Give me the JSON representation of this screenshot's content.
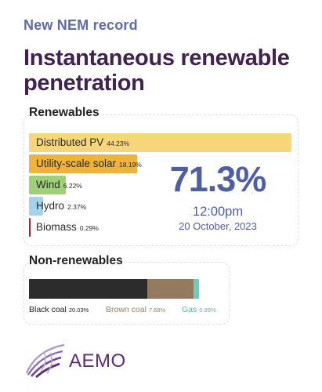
{
  "kicker": "New NEM record",
  "headline": "Instantaneous renewable penetration",
  "renewables": {
    "title": "Renewables",
    "items": [
      {
        "name": "Distributed PV",
        "pct_label": "44.23%",
        "value": 44.23,
        "color": "#f6d57b"
      },
      {
        "name": "Utility-scale solar",
        "pct_label": "18.19%",
        "value": 18.19,
        "color": "#eeb33b"
      },
      {
        "name": "Wind",
        "pct_label": "6.22%",
        "value": 6.22,
        "color": "#9fcf79"
      },
      {
        "name": "Hydro",
        "pct_label": "2.37%",
        "value": 2.37,
        "color": "#a7d3ea"
      },
      {
        "name": "Biomass",
        "pct_label": "0.29%",
        "value": 0.29,
        "color": "#9a2438"
      }
    ],
    "total": "71.3%",
    "time": "12:00pm",
    "date": "20 October, 2023"
  },
  "nonrenewables": {
    "title": "Non-renewables",
    "items": [
      {
        "name": "Black coal",
        "pct_label": "20.03%",
        "value": 20.03,
        "color": "#2c2c2c",
        "label_color": "#222222"
      },
      {
        "name": "Brown coal",
        "pct_label": "7.68%",
        "value": 7.68,
        "color": "#947a5f",
        "label_color": "#9a7f63"
      },
      {
        "name": "Gas",
        "pct_label": "0.99%",
        "value": 0.99,
        "color": "#6ccbc2",
        "label_color": "#4fb9b0"
      }
    ]
  },
  "logo": {
    "text": "AEMO",
    "icon": "aemo-swirl-icon",
    "color": "#5b2c7a"
  }
}
